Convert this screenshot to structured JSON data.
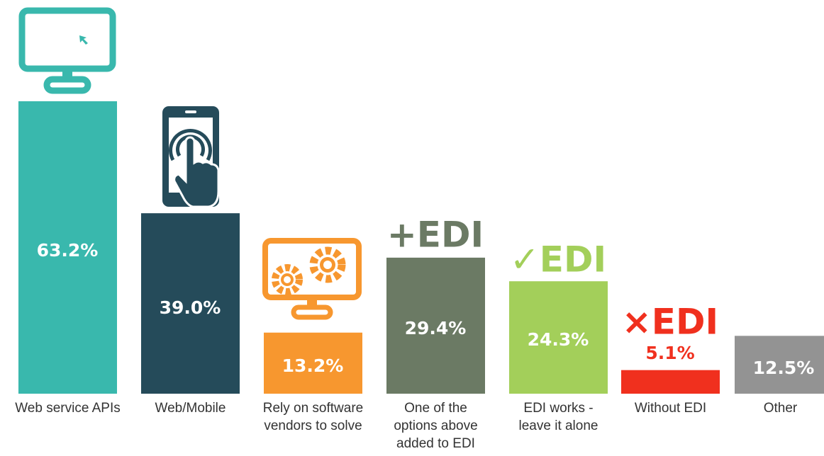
{
  "chart_data": {
    "type": "bar",
    "categories": [
      "Web service APIs",
      "Web/Mobile",
      "Rely on software vendors to solve",
      "One of the options above added to EDI",
      "EDI works - leave it alone",
      "Without EDI",
      "Other"
    ],
    "values": [
      63.2,
      39.0,
      13.2,
      29.4,
      24.3,
      5.1,
      12.5
    ],
    "value_labels": [
      "63.2%",
      "39.0%",
      "13.2%",
      "29.4%",
      "24.3%",
      "5.1%",
      "12.5%"
    ],
    "colors": [
      "#39b8ad",
      "#254b5a",
      "#f7972f",
      "#6b7a64",
      "#a3cf5a",
      "#f0301e",
      "#939393"
    ],
    "annotations": [
      "+EDI",
      "✓EDI",
      "×EDI"
    ]
  }
}
